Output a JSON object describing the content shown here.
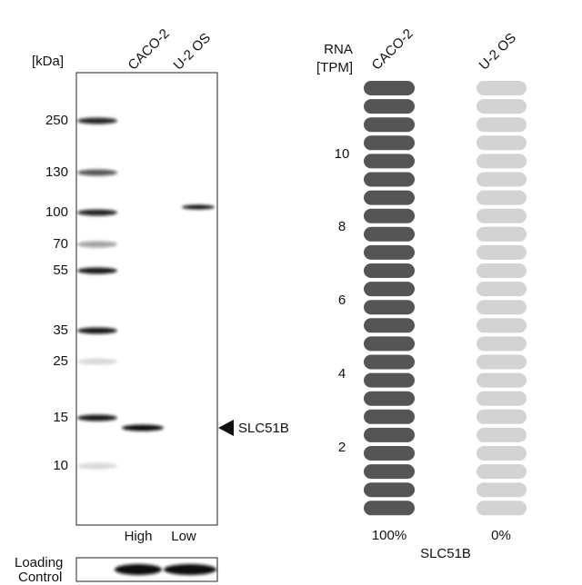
{
  "western_blot": {
    "unit_label": "[kDa]",
    "lanes": [
      "CACO-2",
      "U-2 OS"
    ],
    "markers": [
      "250",
      "130",
      "100",
      "70",
      "55",
      "35",
      "25",
      "15",
      "10"
    ],
    "target": "SLC51B",
    "lane_levels": [
      "High",
      "Low"
    ],
    "loading_control": [
      "Loading",
      "Control"
    ]
  },
  "rna": {
    "axis_label": [
      "RNA",
      "[TPM]"
    ],
    "cell_lines": [
      "CACO-2",
      "U-2 OS"
    ],
    "ticks": [
      "10",
      "8",
      "6",
      "4",
      "2"
    ],
    "percentages": [
      "100%",
      "0%"
    ],
    "gene": "SLC51B"
  }
}
